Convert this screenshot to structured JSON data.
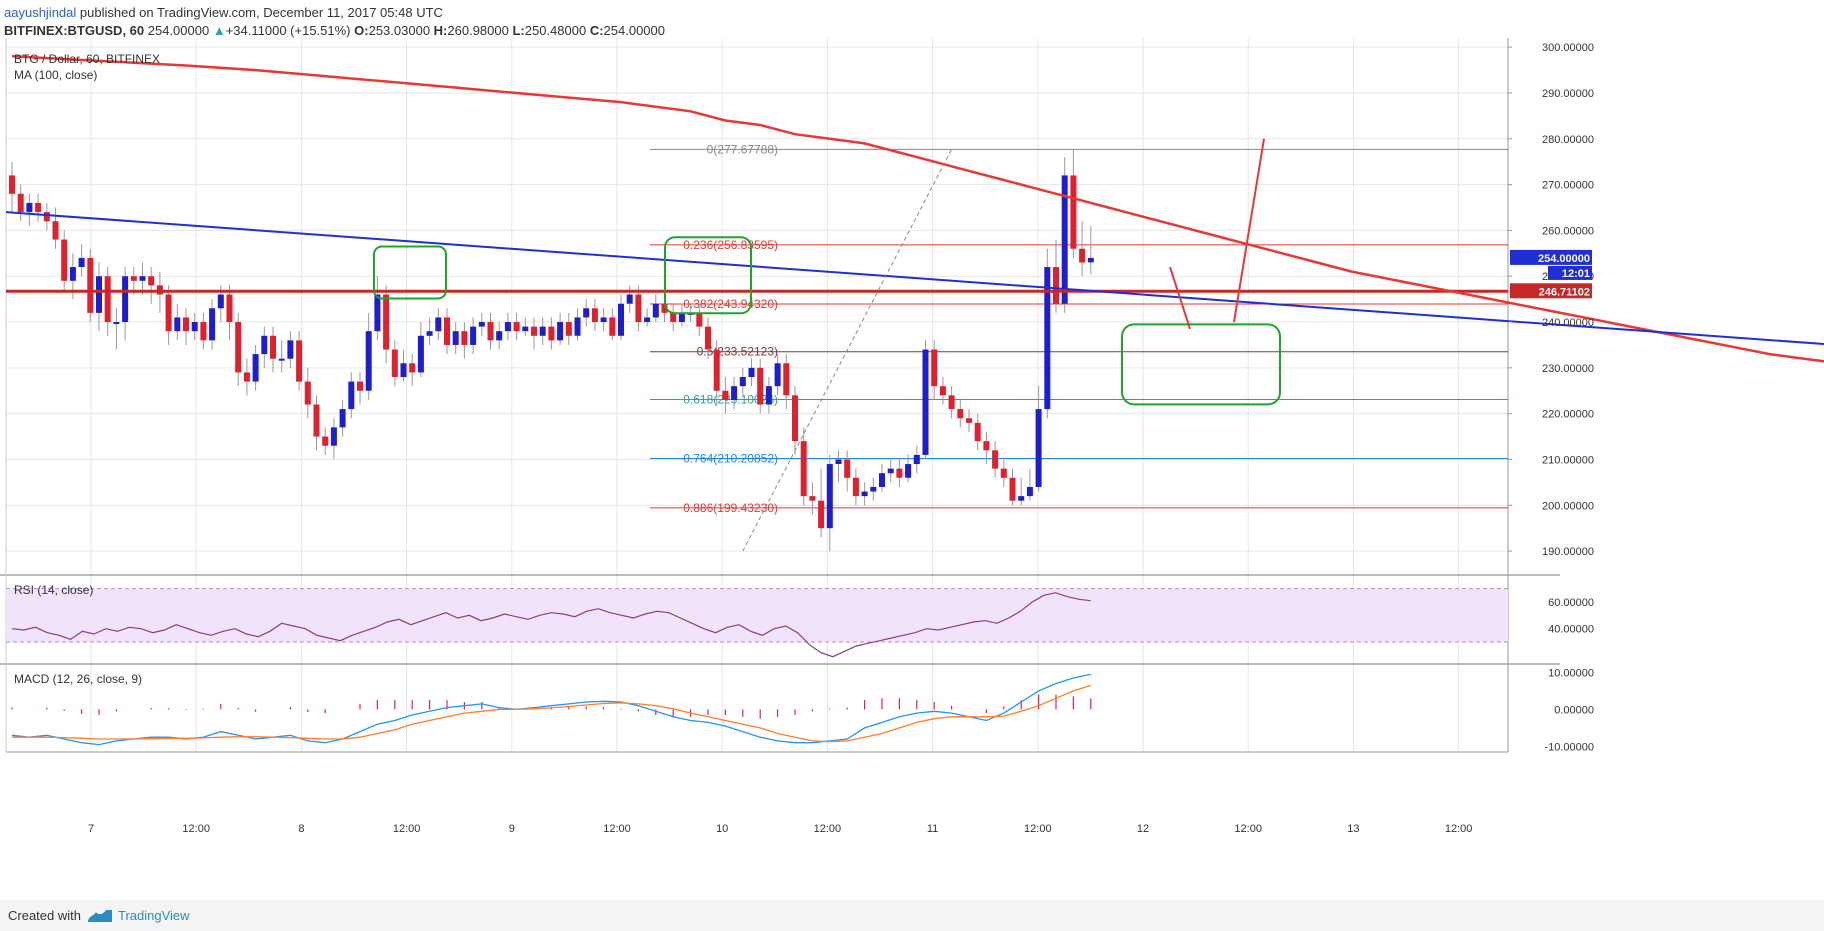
{
  "header": {
    "author": "aayushjindal",
    "published": "published on TradingView.com, December 11, 2017 05:48 UTC",
    "symbol": "BITFINEX:BTGUSD, 60",
    "last": "254.00000",
    "change_arrow": "▲",
    "change": "+34.11000 (+15.51%)",
    "o_label": "O:",
    "o": "253.03000",
    "h_label": "H:",
    "h": "260.98000",
    "l_label": "L:",
    "l": "250.48000",
    "c_label": "C:",
    "c": "254.00000"
  },
  "footer": {
    "created_with": "Created with",
    "brand": "TradingView"
  },
  "chart_data": [
    {
      "type": "candlestick",
      "title": "BTG / Dollar, 60, BITFINEX",
      "indicator_label": "MA (100, close)",
      "ylim": [
        185,
        302
      ],
      "y_ticks": [
        "190.00000",
        "200.00000",
        "210.00000",
        "220.00000",
        "230.00000",
        "240.00000",
        "250.00000",
        "260.00000",
        "270.00000",
        "280.00000",
        "290.00000",
        "300.00000"
      ],
      "y_tick_values": [
        190,
        200,
        210,
        220,
        230,
        240,
        250,
        260,
        270,
        280,
        290,
        300
      ],
      "x_ticks": [
        "7",
        "12:00",
        "8",
        "12:00",
        "9",
        "12:00",
        "10",
        "12:00",
        "11",
        "12:00",
        "12",
        "12:00",
        "13",
        "12:00"
      ],
      "price_tag": "254.00000",
      "time_tag": "12:01",
      "horizontal_level_tag": "246.71102",
      "horizontal_level": 246.71102,
      "fib_levels": [
        {
          "label": "0(277.67788)",
          "value": 277.67788,
          "color": "#888888"
        },
        {
          "label": "0.236(256.83595)",
          "value": 256.83595,
          "color": "#e53935"
        },
        {
          "label": "0.382(243.94320)",
          "value": 243.9432,
          "color": "#e53935"
        },
        {
          "label": "0.5(233.52123)",
          "value": 233.52123,
          "color": "#7b3a3a"
        },
        {
          "label": "0.618(223.10026)",
          "value": 223.10026,
          "color": "#26a69a"
        },
        {
          "label": "0.764(210.20852)",
          "value": 210.20852,
          "color": "#1e88e5"
        },
        {
          "label": "0.886(199.43230)",
          "value": 199.4323,
          "color": "#e53935"
        }
      ],
      "candles": [
        [
          272,
          268,
          275,
          264
        ],
        [
          268,
          264,
          270,
          262
        ],
        [
          264,
          266,
          268,
          261
        ],
        [
          266,
          264,
          268,
          262
        ],
        [
          264,
          262,
          266,
          260
        ],
        [
          262,
          258,
          265,
          256
        ],
        [
          258,
          249,
          260,
          247
        ],
        [
          249,
          252,
          255,
          245
        ],
        [
          252,
          254,
          257,
          250
        ],
        [
          254,
          242,
          256,
          240
        ],
        [
          242,
          250,
          253,
          238
        ],
        [
          250,
          240,
          252,
          237
        ],
        [
          240,
          240,
          243,
          234
        ],
        [
          240,
          250,
          252,
          236
        ],
        [
          250,
          249,
          252,
          246
        ],
        [
          249,
          250,
          253,
          246
        ],
        [
          250,
          248,
          252,
          244
        ],
        [
          248,
          246,
          251,
          242
        ],
        [
          246,
          238,
          248,
          235
        ],
        [
          238,
          241,
          244,
          236
        ],
        [
          241,
          238,
          243,
          235
        ],
        [
          238,
          240,
          242,
          236
        ],
        [
          240,
          236,
          242,
          234
        ],
        [
          236,
          243,
          245,
          234
        ],
        [
          243,
          246,
          248,
          240
        ],
        [
          246,
          240,
          248,
          236
        ],
        [
          240,
          229,
          242,
          226
        ],
        [
          229,
          227,
          232,
          224
        ],
        [
          227,
          233,
          235,
          225
        ],
        [
          233,
          237,
          239,
          230
        ],
        [
          237,
          232,
          239,
          229
        ],
        [
          232,
          232,
          236,
          229
        ],
        [
          232,
          236,
          238,
          230
        ],
        [
          236,
          227,
          238,
          225
        ],
        [
          227,
          222,
          230,
          219
        ],
        [
          222,
          215,
          224,
          212
        ],
        [
          215,
          213,
          217,
          211
        ],
        [
          213,
          217,
          219,
          210
        ],
        [
          217,
          221,
          223,
          215
        ],
        [
          221,
          227,
          229,
          219
        ],
        [
          227,
          225,
          229,
          222
        ],
        [
          225,
          238,
          242,
          223
        ],
        [
          238,
          246,
          250,
          236
        ],
        [
          246,
          234,
          248,
          231
        ],
        [
          234,
          228,
          236,
          226
        ],
        [
          228,
          231,
          234,
          227
        ],
        [
          231,
          229,
          233,
          226
        ],
        [
          229,
          237,
          240,
          228
        ],
        [
          237,
          238,
          241,
          235
        ],
        [
          238,
          241,
          243,
          236
        ],
        [
          241,
          235,
          243,
          233
        ],
        [
          235,
          238,
          240,
          233
        ],
        [
          238,
          235,
          240,
          232
        ],
        [
          235,
          239,
          241,
          233
        ],
        [
          239,
          240,
          242,
          237
        ],
        [
          240,
          236,
          242,
          234
        ],
        [
          236,
          238,
          240,
          234
        ],
        [
          238,
          240,
          242,
          236
        ],
        [
          240,
          238,
          242,
          236
        ],
        [
          238,
          239,
          241,
          237
        ],
        [
          239,
          237,
          241,
          234
        ],
        [
          237,
          239,
          241,
          235
        ],
        [
          239,
          236,
          241,
          234
        ],
        [
          236,
          240,
          242,
          235
        ],
        [
          240,
          237,
          242,
          235
        ],
        [
          237,
          241,
          243,
          236
        ],
        [
          241,
          243,
          245,
          239
        ],
        [
          243,
          240,
          245,
          238
        ],
        [
          240,
          241,
          243,
          238
        ],
        [
          241,
          237,
          243,
          236
        ],
        [
          237,
          244,
          246,
          236
        ],
        [
          244,
          246,
          248,
          242
        ],
        [
          246,
          240,
          248,
          238
        ],
        [
          240,
          241,
          243,
          239
        ],
        [
          241,
          244,
          246,
          240
        ],
        [
          244,
          242,
          246,
          240
        ],
        [
          242,
          240,
          244,
          238
        ],
        [
          240,
          242,
          244,
          239
        ],
        [
          242,
          242,
          244,
          240
        ],
        [
          242,
          239,
          244,
          237
        ],
        [
          239,
          234,
          241,
          232
        ],
        [
          234,
          225,
          236,
          222
        ],
        [
          225,
          223,
          228,
          220
        ],
        [
          223,
          226,
          228,
          221
        ],
        [
          226,
          228,
          230,
          224
        ],
        [
          228,
          230,
          232,
          226
        ],
        [
          230,
          222,
          232,
          220
        ],
        [
          222,
          226,
          228,
          220
        ],
        [
          226,
          231,
          233,
          224
        ],
        [
          231,
          224,
          233,
          221
        ],
        [
          224,
          214,
          226,
          211
        ],
        [
          214,
          202,
          217,
          200
        ],
        [
          202,
          201,
          205,
          198
        ],
        [
          201,
          195,
          208,
          193
        ],
        [
          195,
          209,
          211,
          190
        ],
        [
          209,
          210,
          212,
          205
        ],
        [
          210,
          206,
          212,
          203
        ],
        [
          206,
          202,
          208,
          200
        ],
        [
          202,
          203,
          205,
          200
        ],
        [
          203,
          204,
          206,
          201
        ],
        [
          204,
          207,
          209,
          203
        ],
        [
          207,
          208,
          210,
          205
        ],
        [
          208,
          206,
          210,
          204
        ],
        [
          206,
          209,
          211,
          205
        ],
        [
          209,
          211,
          213,
          207
        ],
        [
          211,
          234,
          236,
          210
        ],
        [
          234,
          226,
          236,
          223
        ],
        [
          226,
          224,
          228,
          222
        ],
        [
          224,
          221,
          226,
          219
        ],
        [
          221,
          219,
          223,
          217
        ],
        [
          219,
          218,
          221,
          216
        ],
        [
          218,
          214,
          220,
          212
        ],
        [
          214,
          212,
          216,
          209
        ],
        [
          212,
          208,
          214,
          206
        ],
        [
          208,
          206,
          210,
          204
        ],
        [
          206,
          201,
          208,
          200
        ],
        [
          201,
          202,
          206,
          200
        ],
        [
          202,
          204,
          208,
          201
        ],
        [
          204,
          221,
          226,
          203
        ],
        [
          221,
          252,
          256,
          219
        ],
        [
          252,
          244,
          258,
          242
        ],
        [
          244,
          272,
          276,
          242
        ],
        [
          272,
          256,
          277.68,
          254
        ],
        [
          256,
          253,
          262,
          250
        ],
        [
          253.03,
          254,
          260.98,
          250.48
        ]
      ],
      "ma100": [
        298,
        297,
        296,
        295,
        294,
        293,
        292,
        291,
        290,
        289,
        288,
        287,
        286,
        284,
        283,
        281,
        280,
        279,
        277,
        275,
        273,
        271,
        269,
        267,
        265,
        263,
        261,
        259,
        257,
        255,
        253,
        251,
        249.5,
        248,
        246.5,
        245,
        243.5,
        242,
        240.5,
        239,
        237.5,
        236,
        234.5,
        233,
        232,
        231,
        230.7,
        230.5,
        230.5,
        230.7,
        231,
        231
      ],
      "ma100_x": [
        0,
        10,
        20,
        28,
        34,
        40,
        46,
        52,
        58,
        64,
        70,
        74,
        78,
        82,
        86,
        90,
        94,
        98,
        102,
        106,
        110,
        114,
        118,
        122,
        126,
        130,
        134,
        138,
        142,
        146,
        150,
        154,
        158,
        162,
        166,
        170,
        174,
        178,
        182,
        186,
        190,
        194,
        198,
        202,
        206,
        210,
        214,
        218,
        222,
        226,
        230,
        236
      ],
      "trendline": {
        "x": [
          0,
          246
        ],
        "y": [
          264,
          230
        ]
      },
      "markup": {
        "swing_low": 190,
        "swing_high": 277.68
      }
    },
    {
      "type": "line",
      "title": "RSI (14, close)",
      "ylim": [
        15,
        78
      ],
      "y_ticks": [
        "40.00000",
        "60.00000"
      ],
      "y_tick_values": [
        40,
        60
      ],
      "bands": [
        30,
        70
      ],
      "values": [
        40,
        39,
        41,
        37,
        35,
        32,
        38,
        36,
        40,
        38,
        41,
        40,
        37,
        39,
        43,
        40,
        37,
        35,
        38,
        40,
        36,
        34,
        38,
        44,
        42,
        40,
        35,
        33,
        31,
        35,
        38,
        41,
        45,
        47,
        43,
        46,
        49,
        52,
        48,
        50,
        46,
        48,
        51,
        49,
        47,
        50,
        52,
        51,
        49,
        53,
        55,
        52,
        50,
        48,
        51,
        53,
        52,
        48,
        44,
        40,
        37,
        41,
        43,
        38,
        35,
        40,
        42,
        37,
        28,
        22,
        19,
        23,
        27,
        29,
        31,
        33,
        35,
        37,
        40,
        39,
        41,
        43,
        45,
        46,
        44,
        48,
        53,
        60,
        65,
        67,
        64,
        62,
        61
      ]
    },
    {
      "type": "line",
      "title": "MACD (12, 26, close, 9)",
      "ylim": [
        -11.5,
        12
      ],
      "y_ticks": [
        "-10.00000",
        "0.00000",
        "10.00000"
      ],
      "y_tick_values": [
        -10,
        0,
        10
      ],
      "series": [
        {
          "name": "MACD",
          "color": "#2196f3",
          "values": [
            -7,
            -7.5,
            -7,
            -8,
            -9,
            -9.5,
            -8.5,
            -8,
            -7.5,
            -7.5,
            -8,
            -7.5,
            -6,
            -7,
            -8,
            -7.5,
            -7,
            -8.5,
            -9,
            -8,
            -6,
            -4,
            -3,
            -1.5,
            -0.5,
            0.5,
            1,
            1.5,
            0.5,
            0,
            0.5,
            1,
            1.5,
            2,
            2.2,
            2,
            1,
            -0.5,
            -2,
            -3,
            -3.5,
            -4.5,
            -6,
            -7.5,
            -8.5,
            -9,
            -9,
            -8.5,
            -8,
            -5,
            -3.5,
            -2,
            -1,
            -0.5,
            -1,
            -2,
            -3,
            -1,
            2,
            5,
            7,
            8.5,
            9.5
          ]
        },
        {
          "name": "Signal",
          "color": "#ff7f27",
          "values": [
            -7.5,
            -7.5,
            -7.5,
            -7.6,
            -7.8,
            -8,
            -8,
            -8,
            -7.9,
            -7.8,
            -7.8,
            -7.7,
            -7.5,
            -7.4,
            -7.4,
            -7.5,
            -7.6,
            -7.8,
            -8,
            -8,
            -7.5,
            -6.5,
            -5.5,
            -4,
            -3,
            -2,
            -1,
            -0.5,
            0,
            0,
            0.2,
            0.4,
            0.8,
            1.2,
            1.6,
            1.8,
            1.5,
            1,
            0.2,
            -1,
            -2,
            -3,
            -4,
            -5,
            -6.5,
            -7.5,
            -8.5,
            -8.7,
            -8.5,
            -7.5,
            -6.5,
            -5,
            -3.5,
            -2.5,
            -2,
            -2,
            -2,
            -1.8,
            -0.5,
            1,
            3,
            5,
            6.5
          ]
        }
      ],
      "histogram": [
        0.5,
        0,
        0.5,
        -0.4,
        -1.2,
        -1.5,
        -0.5,
        0,
        0.4,
        0.3,
        -0.2,
        0.2,
        1.5,
        0.4,
        -0.6,
        0,
        0.6,
        -0.7,
        -1,
        0,
        1.5,
        2.5,
        2.5,
        2.5,
        2.5,
        2.5,
        2,
        2,
        0.5,
        0,
        0.3,
        0.6,
        0.7,
        0.8,
        0.6,
        0.2,
        -0.5,
        -1.5,
        -2.2,
        -2,
        -1.5,
        -1.5,
        -2,
        -2.5,
        -2,
        -1.5,
        -0.5,
        0.2,
        0.5,
        2.5,
        3,
        3,
        2.5,
        2,
        1,
        0,
        -1,
        0.8,
        2.5,
        4,
        4,
        3.5,
        3
      ]
    }
  ]
}
